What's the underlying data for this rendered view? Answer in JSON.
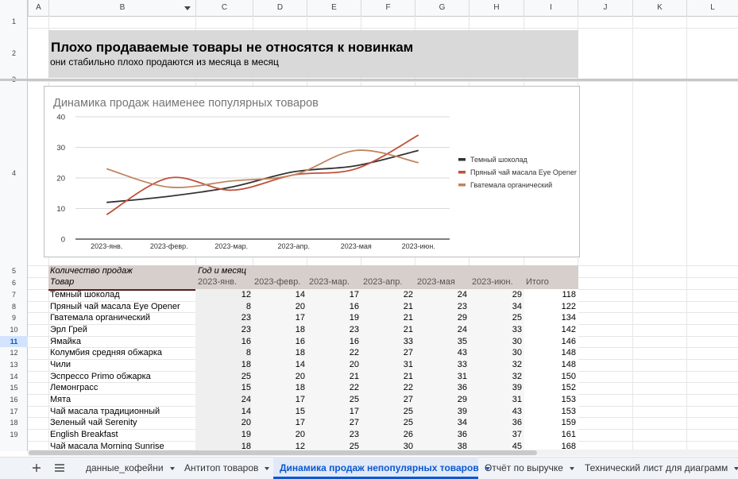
{
  "columns": [
    "A",
    "B",
    "C",
    "D",
    "E",
    "F",
    "G",
    "H",
    "I",
    "J",
    "K",
    "L"
  ],
  "rows": [
    "1",
    "2",
    "3",
    "4",
    "5",
    "6",
    "7",
    "8",
    "9",
    "10",
    "11",
    "12",
    "13",
    "14",
    "15",
    "16",
    "17",
    "18",
    "19"
  ],
  "selected_row": "11",
  "header": {
    "title": "Плохо продаваемые товары не относятся к новинкам",
    "subtitle": "они стабильно плохо продаются из месяца в месяц"
  },
  "chart_data": {
    "type": "line",
    "title": "Динамика продаж наименее популярных товаров",
    "categories": [
      "2023-янв.",
      "2023-февр.",
      "2023-мар.",
      "2023-апр.",
      "2023-мая",
      "2023-июн."
    ],
    "yticks": [
      "0",
      "10",
      "20",
      "30",
      "40"
    ],
    "ylim": [
      0,
      40
    ],
    "grid": true,
    "legend": "right",
    "series": [
      {
        "name": "Темный шоколад",
        "values": [
          12,
          14,
          17,
          22,
          24,
          29
        ],
        "color": "#333333"
      },
      {
        "name": "Пряный чай масала Eye Opener",
        "values": [
          8,
          20,
          16,
          21,
          23,
          34
        ],
        "color": "#c0503a"
      },
      {
        "name": "Гватемала органический",
        "values": [
          23,
          17,
          19,
          21,
          29,
          25
        ],
        "color": "#c0855f"
      }
    ]
  },
  "pivot": {
    "label_qty": "Количество продаж",
    "label_month": "Год и месяц",
    "label_product": "Товар",
    "months": [
      "2023-янв.",
      "2023-февр.",
      "2023-мар.",
      "2023-апр.",
      "2023-мая",
      "2023-июн."
    ],
    "total_label": "Итого",
    "rows": [
      {
        "name": "Темный шоколад",
        "v": [
          "12",
          "14",
          "17",
          "22",
          "24",
          "29"
        ],
        "t": "118"
      },
      {
        "name": "Пряный чай масала Eye Opener",
        "v": [
          "8",
          "20",
          "16",
          "21",
          "23",
          "34"
        ],
        "t": "122"
      },
      {
        "name": "Гватемала органический",
        "v": [
          "23",
          "17",
          "19",
          "21",
          "29",
          "25"
        ],
        "t": "134"
      },
      {
        "name": "Эрл Грей",
        "v": [
          "23",
          "18",
          "23",
          "21",
          "24",
          "33"
        ],
        "t": "142"
      },
      {
        "name": "Ямайка",
        "v": [
          "16",
          "16",
          "16",
          "33",
          "35",
          "30"
        ],
        "t": "146"
      },
      {
        "name": "Колумбия средняя обжарка",
        "v": [
          "8",
          "18",
          "22",
          "27",
          "43",
          "30"
        ],
        "t": "148"
      },
      {
        "name": "Чили",
        "v": [
          "18",
          "14",
          "20",
          "31",
          "33",
          "32"
        ],
        "t": "148"
      },
      {
        "name": "Эспрессо Primo обжарка",
        "v": [
          "25",
          "20",
          "21",
          "21",
          "31",
          "32"
        ],
        "t": "150"
      },
      {
        "name": "Лемонграсс",
        "v": [
          "15",
          "18",
          "22",
          "22",
          "36",
          "39"
        ],
        "t": "152"
      },
      {
        "name": "Мята",
        "v": [
          "24",
          "17",
          "25",
          "27",
          "29",
          "31"
        ],
        "t": "153"
      },
      {
        "name": "Чай масала традиционный",
        "v": [
          "14",
          "15",
          "17",
          "25",
          "39",
          "43"
        ],
        "t": "153"
      },
      {
        "name": "Зеленый чай Serenity",
        "v": [
          "20",
          "17",
          "27",
          "25",
          "34",
          "36"
        ],
        "t": "159"
      },
      {
        "name": "English Breakfast",
        "v": [
          "19",
          "20",
          "23",
          "26",
          "36",
          "37"
        ],
        "t": "161"
      },
      {
        "name": "Чай масала Morning Sunrise",
        "v": [
          "18",
          "12",
          "25",
          "30",
          "38",
          "45"
        ],
        "t": "168"
      }
    ]
  },
  "tabs": [
    {
      "label": "данные_кофейни",
      "active": false
    },
    {
      "label": "Антитоп товаров",
      "active": false
    },
    {
      "label": "Динамика продаж непопулярных товаров",
      "active": true
    },
    {
      "label": "Отчёт по выручке",
      "active": false
    },
    {
      "label": "Технический лист для диаграмм",
      "active": false
    }
  ],
  "icons": {
    "add": "plus-icon",
    "menu": "hamburger-menu-icon"
  }
}
